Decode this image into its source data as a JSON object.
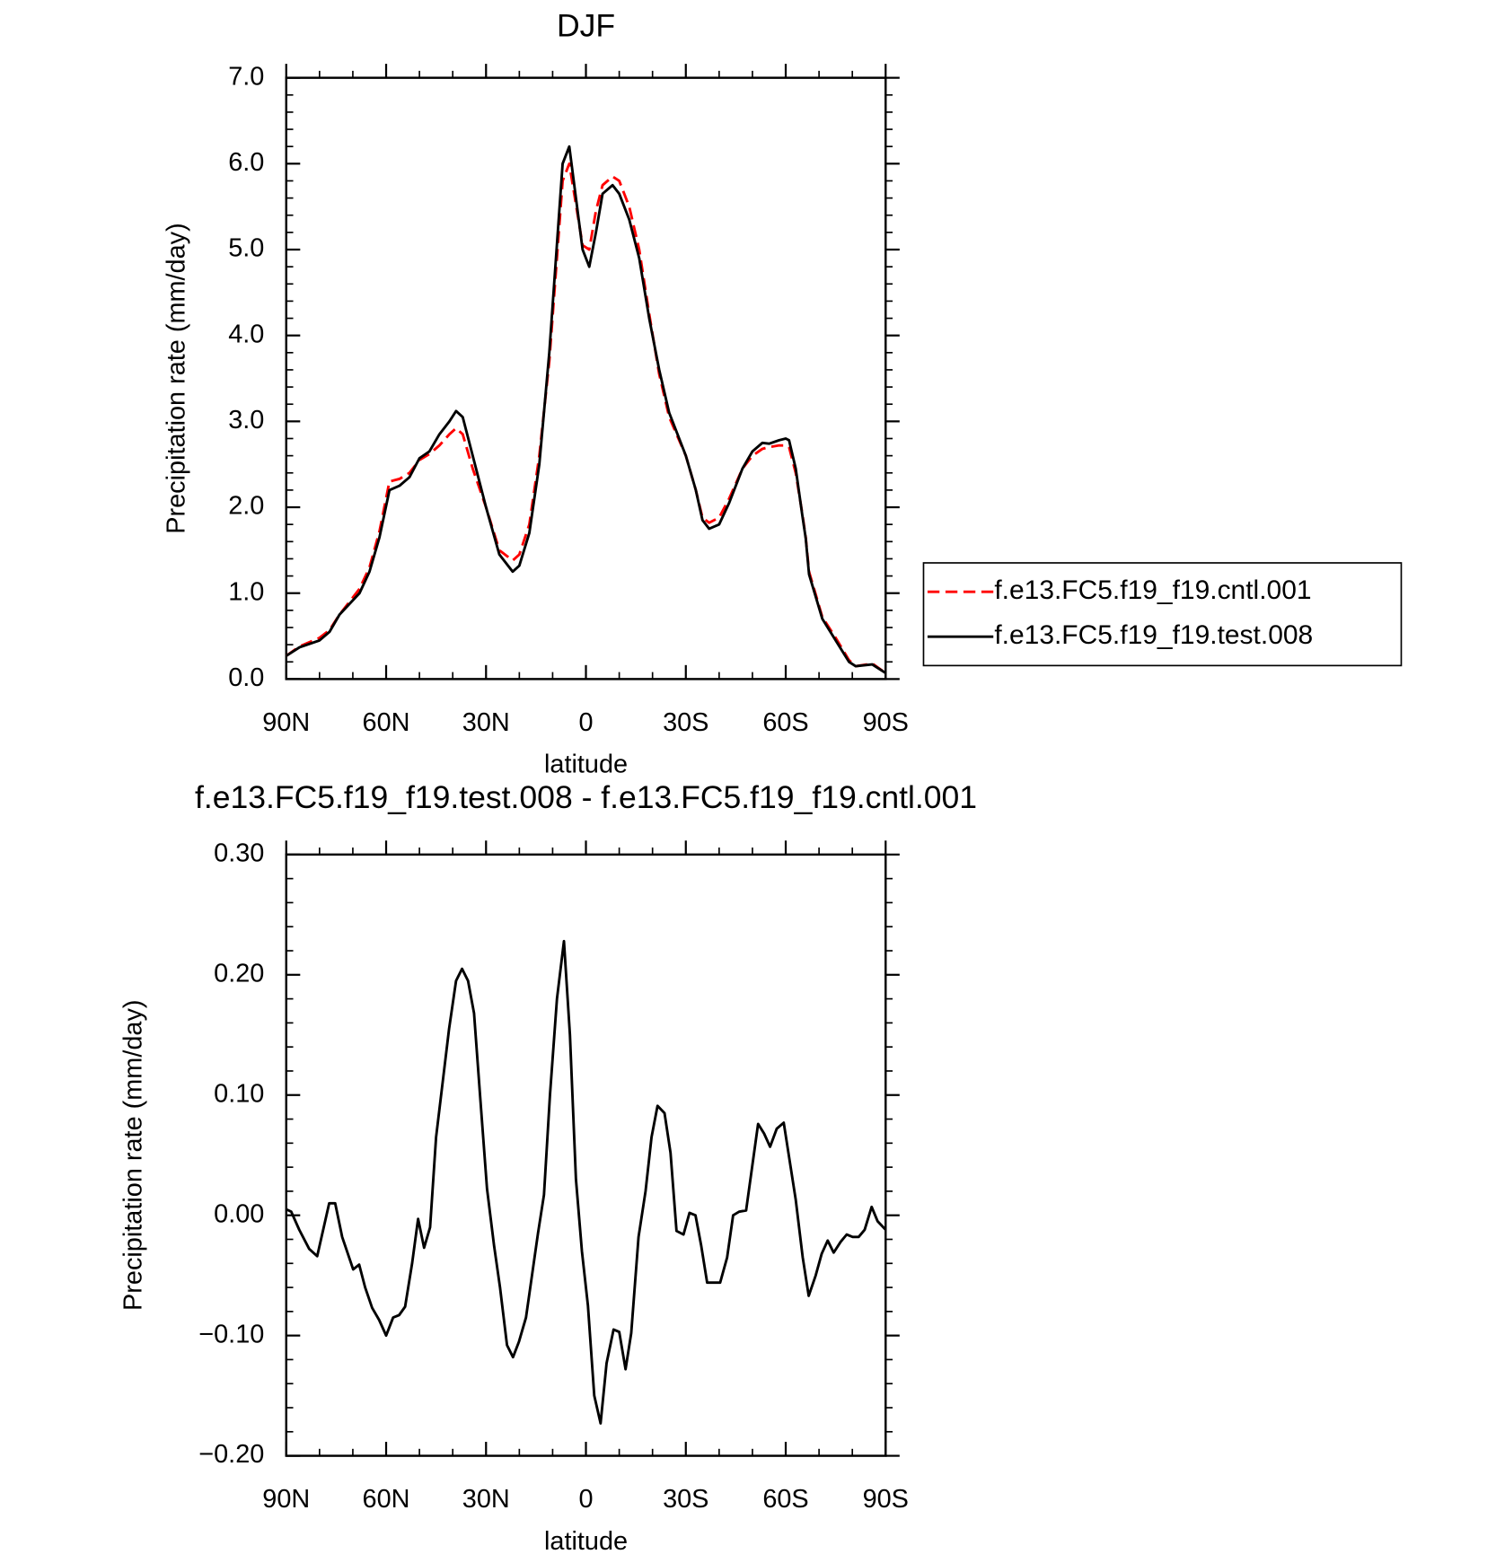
{
  "chart_data": [
    {
      "type": "line",
      "title": "DJF",
      "xlabel": "latitude",
      "ylabel": "Precipitation rate (mm/day)",
      "x": [
        90,
        86,
        80,
        77,
        74,
        68,
        65,
        62,
        59,
        56,
        53,
        50,
        47,
        44,
        41,
        39,
        37,
        34,
        30,
        26,
        22,
        20,
        17,
        14,
        11,
        7,
        5,
        1,
        -1,
        -3,
        -5,
        -8,
        -10,
        -13,
        -16,
        -19,
        -22,
        -25,
        -30,
        -33,
        -35,
        -37,
        -40,
        -43,
        -47,
        -50,
        -53,
        -55,
        -58,
        -60,
        -61,
        -63,
        -65,
        -66,
        -67,
        -71,
        -75,
        -79,
        -81,
        -86,
        -90
      ],
      "series": [
        {
          "name": "f.e13.FC5.f19_f19.cntl.001",
          "color": "#ff0000",
          "dashed": true,
          "values": [
            0.27,
            0.38,
            0.48,
            0.57,
            0.75,
            1.05,
            1.3,
            1.72,
            2.3,
            2.33,
            2.4,
            2.55,
            2.62,
            2.72,
            2.85,
            2.92,
            2.85,
            2.45,
            2.0,
            1.5,
            1.38,
            1.45,
            1.8,
            2.6,
            3.7,
            5.8,
            6.0,
            5.05,
            5.0,
            5.45,
            5.75,
            5.85,
            5.8,
            5.5,
            5.0,
            4.25,
            3.55,
            3.05,
            2.6,
            2.2,
            1.88,
            1.82,
            1.88,
            2.1,
            2.45,
            2.6,
            2.68,
            2.7,
            2.72,
            2.72,
            2.7,
            2.4,
            1.92,
            1.65,
            1.25,
            0.72,
            0.48,
            0.22,
            0.15,
            0.18,
            0.07
          ]
        },
        {
          "name": "f.e13.FC5.f19_f19.test.008",
          "color": "#000000",
          "dashed": false,
          "values": [
            0.27,
            0.37,
            0.45,
            0.55,
            0.75,
            1.0,
            1.25,
            1.65,
            2.2,
            2.25,
            2.35,
            2.57,
            2.65,
            2.85,
            3.0,
            3.12,
            3.05,
            2.6,
            2.0,
            1.45,
            1.25,
            1.32,
            1.7,
            2.5,
            3.8,
            6.0,
            6.2,
            5.0,
            4.8,
            5.2,
            5.65,
            5.75,
            5.65,
            5.35,
            4.9,
            4.2,
            3.6,
            3.1,
            2.6,
            2.2,
            1.85,
            1.75,
            1.8,
            2.05,
            2.45,
            2.65,
            2.75,
            2.74,
            2.78,
            2.8,
            2.78,
            2.45,
            1.9,
            1.64,
            1.22,
            0.7,
            0.45,
            0.2,
            0.15,
            0.17,
            0.07
          ]
        }
      ],
      "xlim": [
        90,
        -90
      ],
      "xticks": [
        {
          "value": 90,
          "label": "90N"
        },
        {
          "value": 60,
          "label": "60N"
        },
        {
          "value": 30,
          "label": "30N"
        },
        0,
        {
          "value": -30,
          "label": "30S"
        },
        {
          "value": -60,
          "label": "60S"
        },
        {
          "value": -90,
          "label": "90S"
        }
      ],
      "ylim": [
        0,
        7
      ],
      "yticks": [
        {
          "value": 0,
          "label": "0.0"
        },
        {
          "value": 1,
          "label": "1.0"
        },
        {
          "value": 2,
          "label": "2.0"
        },
        {
          "value": 3,
          "label": "3.0"
        },
        {
          "value": 4,
          "label": "4.0"
        },
        {
          "value": 5,
          "label": "5.0"
        },
        {
          "value": 6,
          "label": "6.0"
        },
        {
          "value": 7,
          "label": "7.0"
        }
      ],
      "legend": "right"
    },
    {
      "type": "line",
      "title": "f.e13.FC5.f19_f19.test.008 - f.e13.FC5.f19_f19.cntl.001",
      "xlabel": "latitude",
      "ylabel": "Precipitation rate (mm/day)",
      "x": [
        90,
        88.5,
        86.1,
        83.1,
        80.7,
        77.1,
        75.3,
        73.2,
        69.9,
        68.1,
        66.3,
        64.2,
        62.1,
        60.0,
        57.9,
        56.1,
        54.3,
        52.2,
        50.4,
        48.6,
        46.8,
        45.0,
        41.1,
        39.0,
        37.2,
        35.4,
        33.6,
        31.8,
        29.7,
        27.6,
        25.8,
        23.7,
        21.9,
        20.1,
        18.0,
        16.2,
        14.4,
        12.6,
        10.8,
        8.7,
        6.6,
        4.8,
        3.0,
        1.2,
        -0.6,
        -2.5,
        -4.4,
        -6.2,
        -8.3,
        -10.0,
        -11.9,
        -13.6,
        -15.8,
        -17.9,
        -19.7,
        -21.5,
        -23.6,
        -25.4,
        -27.2,
        -29.3,
        -31.1,
        -32.9,
        -34.6,
        -36.4,
        -38.5,
        -40.3,
        -42.4,
        -44.2,
        -46.0,
        -48.1,
        -49.9,
        -51.7,
        -53.5,
        -55.3,
        -57.3,
        -59.4,
        -61.2,
        -63.0,
        -65.1,
        -66.9,
        -69.0,
        -70.8,
        -72.6,
        -74.4,
        -76.5,
        -78.3,
        -80.1,
        -81.9,
        -83.7,
        -85.8,
        -87.6,
        -90
      ],
      "series": [
        {
          "color": "#000000",
          "dashed": false,
          "values": [
            0.005,
            0.003,
            -0.012,
            -0.028,
            -0.034,
            0.01,
            0.01,
            -0.018,
            -0.045,
            -0.041,
            -0.06,
            -0.077,
            -0.087,
            -0.1,
            -0.085,
            -0.083,
            -0.076,
            -0.04,
            -0.003,
            -0.027,
            -0.01,
            0.065,
            0.155,
            0.195,
            0.205,
            0.195,
            0.168,
            0.1,
            0.022,
            -0.025,
            -0.06,
            -0.108,
            -0.118,
            -0.105,
            -0.085,
            -0.05,
            -0.015,
            0.017,
            0.1,
            0.18,
            0.228,
            0.15,
            0.03,
            -0.03,
            -0.075,
            -0.15,
            -0.173,
            -0.123,
            -0.095,
            -0.097,
            -0.128,
            -0.098,
            -0.018,
            0.02,
            0.065,
            0.091,
            0.085,
            0.052,
            -0.013,
            -0.016,
            0.002,
            0.0,
            -0.025,
            -0.056,
            -0.056,
            -0.056,
            -0.035,
            0.0,
            0.003,
            0.004,
            0.04,
            0.076,
            0.068,
            0.057,
            0.072,
            0.077,
            0.045,
            0.013,
            -0.035,
            -0.067,
            -0.05,
            -0.032,
            -0.021,
            -0.031,
            -0.022,
            -0.016,
            -0.018,
            -0.018,
            -0.012,
            0.007,
            -0.005,
            -0.012
          ]
        }
      ],
      "xlim": [
        90,
        -90
      ],
      "xticks": [
        {
          "value": 90,
          "label": "90N"
        },
        {
          "value": 60,
          "label": "60N"
        },
        {
          "value": 30,
          "label": "30N"
        },
        0,
        {
          "value": -30,
          "label": "30S"
        },
        {
          "value": -60,
          "label": "60S"
        },
        {
          "value": -90,
          "label": "90S"
        }
      ],
      "ylim": [
        -0.2,
        0.3
      ],
      "yticks": [
        {
          "value": -0.2,
          "label": "−0.20"
        },
        {
          "value": -0.1,
          "label": "−0.10"
        },
        {
          "value": 0,
          "label": "0.00"
        },
        {
          "value": 0.1,
          "label": "0.10"
        },
        {
          "value": 0.2,
          "label": "0.20"
        },
        {
          "value": 0.3,
          "label": "0.30"
        }
      ]
    }
  ]
}
